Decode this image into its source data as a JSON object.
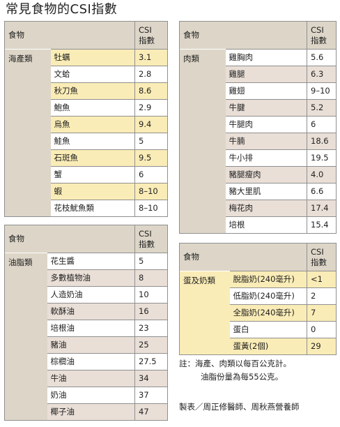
{
  "title": "常見食物的CSI指數",
  "tables": {
    "seafood": {
      "header_name": "食物",
      "header_csi_line1": "CSI",
      "header_csi_line2": "指數",
      "category": "海產類",
      "rows": [
        {
          "food": "牡蠣",
          "csi": "3.1"
        },
        {
          "food": "文蛤",
          "csi": "2.8"
        },
        {
          "food": "秋刀魚",
          "csi": "8.6"
        },
        {
          "food": "鮑魚",
          "csi": "2.9"
        },
        {
          "food": "烏魚",
          "csi": "9.4"
        },
        {
          "food": "鮭魚",
          "csi": "5"
        },
        {
          "food": "石斑魚",
          "csi": "9.5"
        },
        {
          "food": "蟹",
          "csi": "6"
        },
        {
          "food": "蝦",
          "csi": "8–10"
        },
        {
          "food": "花枝魷魚類",
          "csi": "8–10"
        }
      ]
    },
    "meat": {
      "header_name": "食物",
      "header_csi_line1": "CSI",
      "header_csi_line2": "指數",
      "category": "肉類",
      "rows": [
        {
          "food": "雞胸肉",
          "csi": "5.6"
        },
        {
          "food": "雞腿",
          "csi": "6.3"
        },
        {
          "food": "雞翅",
          "csi": "9–10"
        },
        {
          "food": "牛腱",
          "csi": "5.2"
        },
        {
          "food": "牛腿肉",
          "csi": "6"
        },
        {
          "food": "牛腩",
          "csi": "18.6"
        },
        {
          "food": "牛小排",
          "csi": "19.5"
        },
        {
          "food": "豬腿瘦肉",
          "csi": "4.0"
        },
        {
          "food": "豬大里肌",
          "csi": "6.6"
        },
        {
          "food": "梅花肉",
          "csi": "17.4"
        },
        {
          "food": "培根",
          "csi": "15.4"
        }
      ]
    },
    "fats": {
      "header_name": "食物",
      "header_csi_line1": "CSI",
      "header_csi_line2": "指數",
      "category": "油脂類",
      "rows": [
        {
          "food": "花生醬",
          "csi": "5"
        },
        {
          "food": "多數植物油",
          "csi": "8"
        },
        {
          "food": "人造奶油",
          "csi": "10"
        },
        {
          "food": "軟酥油",
          "csi": "16"
        },
        {
          "food": "培根油",
          "csi": "23"
        },
        {
          "food": "豬油",
          "csi": "25"
        },
        {
          "food": "棕櫚油",
          "csi": "27.5"
        },
        {
          "food": "牛油",
          "csi": "34"
        },
        {
          "food": "奶油",
          "csi": "37"
        },
        {
          "food": "椰子油",
          "csi": "47"
        }
      ]
    },
    "eggs_dairy": {
      "header_name": "食物",
      "header_csi_line1": "CSI",
      "header_csi_line2": "指數",
      "category": "蛋及奶類",
      "rows": [
        {
          "food": "脫脂奶(240毫升)",
          "csi": "<1"
        },
        {
          "food": "低脂奶(240毫升)",
          "csi": "2"
        },
        {
          "food": "全脂奶(240毫升)",
          "csi": "7"
        },
        {
          "food": "蛋白",
          "csi": "0"
        },
        {
          "food": "蛋黃(2個)",
          "csi": "29"
        }
      ]
    }
  },
  "note": {
    "line1": "註：海產、肉類以每百公克計。",
    "line2": "油脂份量為每55公克。"
  },
  "credit": "製表／周正修醫師、周秋燕營養師"
}
